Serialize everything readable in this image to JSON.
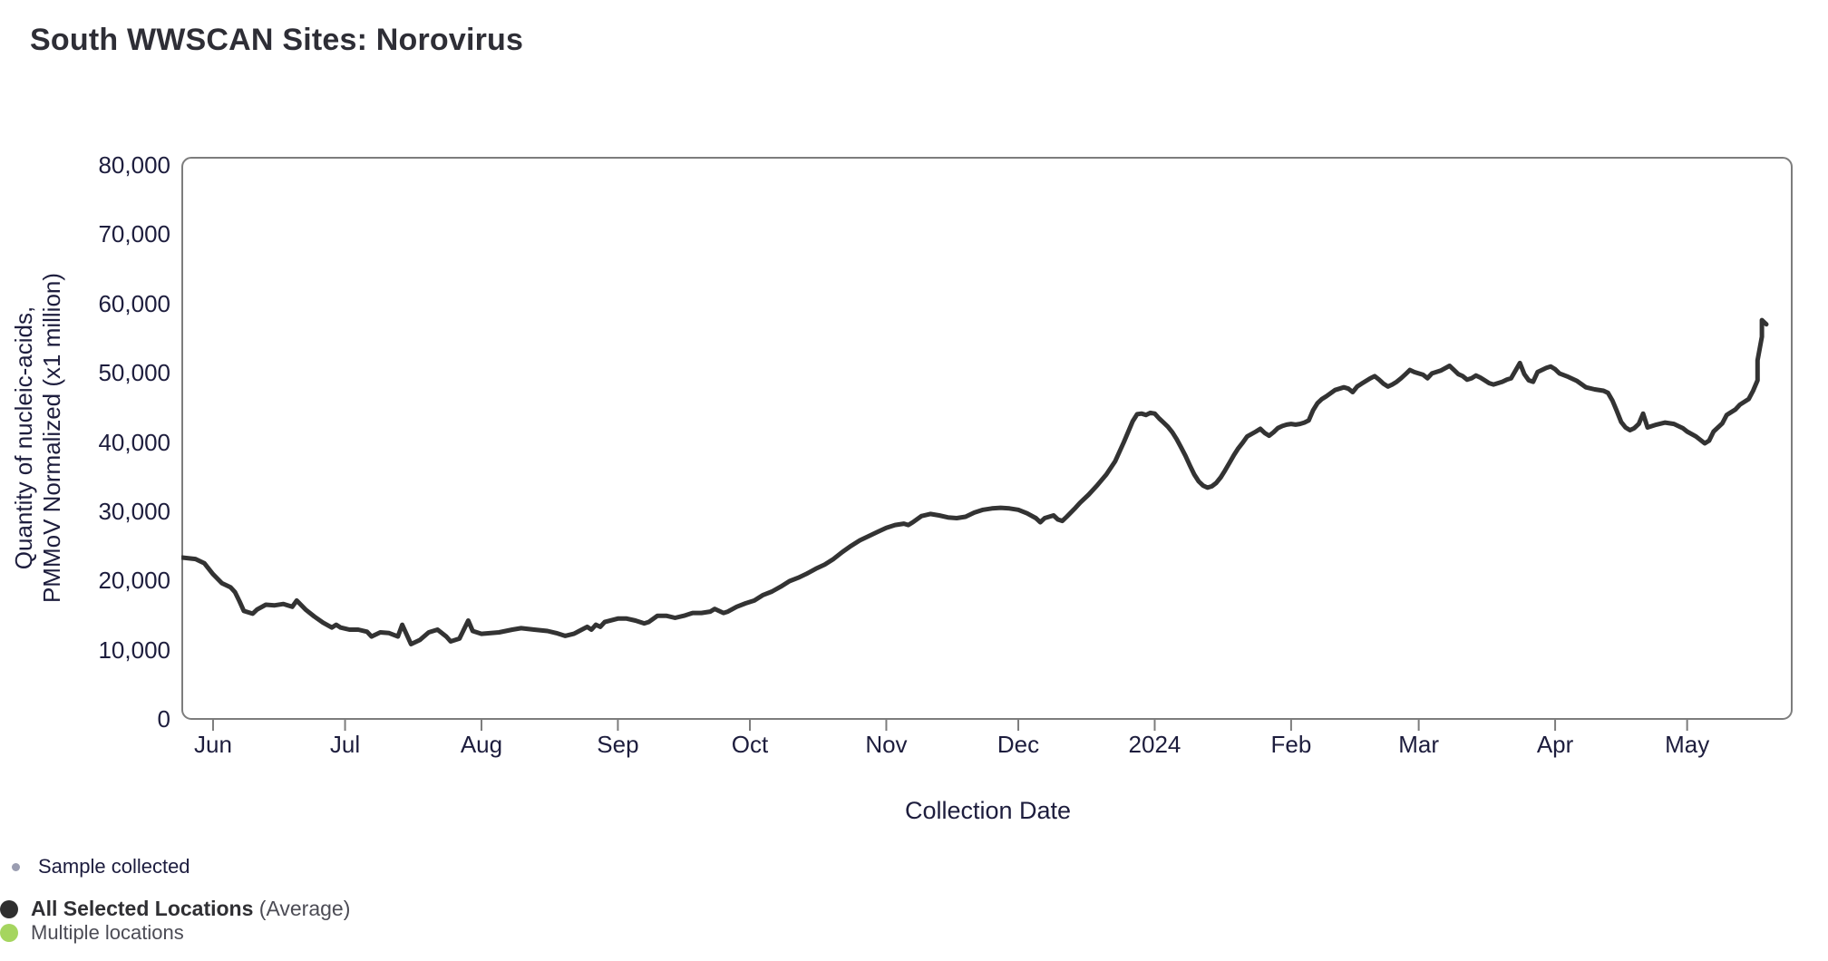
{
  "header": {
    "title": "South WWSCAN Sites: Norovirus"
  },
  "legend": {
    "sample_collected": {
      "label": "Sample collected",
      "dot_color": "#9a9db1"
    },
    "all_selected": {
      "label_bold": "All Selected Locations",
      "label_suffix": " (Average)",
      "dot_color": "#2f2f2f"
    },
    "multiple_locations": {
      "label": "Multiple locations",
      "dot_color": "#a5d55f"
    }
  },
  "chart_data": {
    "type": "line",
    "title": "South WWSCAN Sites: Norovirus",
    "xlabel": "Collection Date",
    "ylabel_lines": [
      "Quantity of nucleic-acids,",
      "PMMoV Normalized (x1 million)"
    ],
    "ylim": [
      0,
      80000
    ],
    "grid": false,
    "frame_color": "#7d7d7d",
    "x_domain": [
      "2023-05-25",
      "2024-05-19"
    ],
    "y_ticks": [
      {
        "value": 0,
        "label": "0"
      },
      {
        "value": 10000,
        "label": "10,000"
      },
      {
        "value": 20000,
        "label": "20,000"
      },
      {
        "value": 30000,
        "label": "30,000"
      },
      {
        "value": 40000,
        "label": "40,000"
      },
      {
        "value": 50000,
        "label": "50,000"
      },
      {
        "value": 60000,
        "label": "60,000"
      },
      {
        "value": 70000,
        "label": "70,000"
      },
      {
        "value": 80000,
        "label": "80,000"
      }
    ],
    "x_ticks": [
      {
        "date": "2023-06-01",
        "label": "Jun"
      },
      {
        "date": "2023-07-01",
        "label": "Jul"
      },
      {
        "date": "2023-08-01",
        "label": "Aug"
      },
      {
        "date": "2023-09-01",
        "label": "Sep"
      },
      {
        "date": "2023-10-01",
        "label": "Oct"
      },
      {
        "date": "2023-11-01",
        "label": "Nov"
      },
      {
        "date": "2023-12-01",
        "label": "Dec"
      },
      {
        "date": "2024-01-01",
        "label": "2024"
      },
      {
        "date": "2024-02-01",
        "label": "Feb"
      },
      {
        "date": "2024-03-01",
        "label": "Mar"
      },
      {
        "date": "2024-04-01",
        "label": "Apr"
      },
      {
        "date": "2024-05-01",
        "label": "May"
      }
    ],
    "series": [
      {
        "name": "All Selected Locations (Average)",
        "color": "#333333",
        "points": [
          [
            "2023-05-25",
            23300
          ],
          [
            "2023-05-28",
            23100
          ],
          [
            "2023-05-30",
            22500
          ],
          [
            "2023-06-01",
            20900
          ],
          [
            "2023-06-03",
            19600
          ],
          [
            "2023-06-05",
            19000
          ],
          [
            "2023-06-06",
            18300
          ],
          [
            "2023-06-07",
            17000
          ],
          [
            "2023-06-08",
            15600
          ],
          [
            "2023-06-10",
            15200
          ],
          [
            "2023-06-11",
            15800
          ],
          [
            "2023-06-13",
            16500
          ],
          [
            "2023-06-15",
            16400
          ],
          [
            "2023-06-17",
            16600
          ],
          [
            "2023-06-19",
            16200
          ],
          [
            "2023-06-20",
            17100
          ],
          [
            "2023-06-22",
            15800
          ],
          [
            "2023-06-24",
            14800
          ],
          [
            "2023-06-26",
            13900
          ],
          [
            "2023-06-28",
            13200
          ],
          [
            "2023-06-29",
            13600
          ],
          [
            "2023-06-30",
            13200
          ],
          [
            "2023-07-02",
            12900
          ],
          [
            "2023-07-04",
            12900
          ],
          [
            "2023-07-06",
            12600
          ],
          [
            "2023-07-07",
            11900
          ],
          [
            "2023-07-09",
            12500
          ],
          [
            "2023-07-11",
            12400
          ],
          [
            "2023-07-13",
            11900
          ],
          [
            "2023-07-14",
            13600
          ],
          [
            "2023-07-16",
            10800
          ],
          [
            "2023-07-18",
            11400
          ],
          [
            "2023-07-20",
            12500
          ],
          [
            "2023-07-22",
            12900
          ],
          [
            "2023-07-24",
            11900
          ],
          [
            "2023-07-25",
            11200
          ],
          [
            "2023-07-27",
            11600
          ],
          [
            "2023-07-29",
            14200
          ],
          [
            "2023-07-30",
            12700
          ],
          [
            "2023-08-01",
            12300
          ],
          [
            "2023-08-05",
            12500
          ],
          [
            "2023-08-08",
            12900
          ],
          [
            "2023-08-10",
            13100
          ],
          [
            "2023-08-13",
            12900
          ],
          [
            "2023-08-16",
            12700
          ],
          [
            "2023-08-18",
            12400
          ],
          [
            "2023-08-20",
            12000
          ],
          [
            "2023-08-22",
            12300
          ],
          [
            "2023-08-25",
            13300
          ],
          [
            "2023-08-26",
            12900
          ],
          [
            "2023-08-27",
            13600
          ],
          [
            "2023-08-28",
            13300
          ],
          [
            "2023-08-29",
            14000
          ],
          [
            "2023-09-01",
            14500
          ],
          [
            "2023-09-03",
            14500
          ],
          [
            "2023-09-05",
            14200
          ],
          [
            "2023-09-07",
            13800
          ],
          [
            "2023-09-08",
            14000
          ],
          [
            "2023-09-10",
            14900
          ],
          [
            "2023-09-12",
            14900
          ],
          [
            "2023-09-14",
            14600
          ],
          [
            "2023-09-16",
            14900
          ],
          [
            "2023-09-18",
            15300
          ],
          [
            "2023-09-20",
            15300
          ],
          [
            "2023-09-22",
            15500
          ],
          [
            "2023-09-23",
            15900
          ],
          [
            "2023-09-25",
            15300
          ],
          [
            "2023-09-26",
            15500
          ],
          [
            "2023-09-28",
            16200
          ],
          [
            "2023-09-30",
            16700
          ],
          [
            "2023-10-02",
            17100
          ],
          [
            "2023-10-04",
            17900
          ],
          [
            "2023-10-06",
            18400
          ],
          [
            "2023-10-08",
            19100
          ],
          [
            "2023-10-10",
            19900
          ],
          [
            "2023-10-12",
            20400
          ],
          [
            "2023-10-14",
            21000
          ],
          [
            "2023-10-16",
            21700
          ],
          [
            "2023-10-18",
            22300
          ],
          [
            "2023-10-20",
            23100
          ],
          [
            "2023-10-22",
            24100
          ],
          [
            "2023-10-24",
            25000
          ],
          [
            "2023-10-26",
            25800
          ],
          [
            "2023-10-28",
            26400
          ],
          [
            "2023-10-30",
            27000
          ],
          [
            "2023-11-01",
            27600
          ],
          [
            "2023-11-03",
            28000
          ],
          [
            "2023-11-05",
            28200
          ],
          [
            "2023-11-06",
            28000
          ],
          [
            "2023-11-07",
            28400
          ],
          [
            "2023-11-09",
            29300
          ],
          [
            "2023-11-11",
            29600
          ],
          [
            "2023-11-13",
            29400
          ],
          [
            "2023-11-15",
            29100
          ],
          [
            "2023-11-17",
            29000
          ],
          [
            "2023-11-19",
            29200
          ],
          [
            "2023-11-21",
            29800
          ],
          [
            "2023-11-23",
            30200
          ],
          [
            "2023-11-25",
            30400
          ],
          [
            "2023-11-27",
            30500
          ],
          [
            "2023-11-29",
            30400
          ],
          [
            "2023-12-01",
            30200
          ],
          [
            "2023-12-03",
            29700
          ],
          [
            "2023-12-05",
            29000
          ],
          [
            "2023-12-06",
            28400
          ],
          [
            "2023-12-07",
            29000
          ],
          [
            "2023-12-09",
            29400
          ],
          [
            "2023-12-10",
            28800
          ],
          [
            "2023-12-11",
            28600
          ],
          [
            "2023-12-12",
            29200
          ],
          [
            "2023-12-14",
            30500
          ],
          [
            "2023-12-15",
            31200
          ],
          [
            "2023-12-17",
            32400
          ],
          [
            "2023-12-19",
            33800
          ],
          [
            "2023-12-21",
            35300
          ],
          [
            "2023-12-23",
            37200
          ],
          [
            "2023-12-25",
            40000
          ],
          [
            "2023-12-27",
            43000
          ],
          [
            "2023-12-28",
            44000
          ],
          [
            "2023-12-29",
            44100
          ],
          [
            "2023-12-30",
            43900
          ],
          [
            "2023-12-31",
            44200
          ],
          [
            "2024-01-01",
            44100
          ],
          [
            "2024-01-02",
            43400
          ],
          [
            "2024-01-03",
            42800
          ],
          [
            "2024-01-04",
            42200
          ],
          [
            "2024-01-05",
            41400
          ],
          [
            "2024-01-06",
            40400
          ],
          [
            "2024-01-07",
            39200
          ],
          [
            "2024-01-08",
            38000
          ],
          [
            "2024-01-09",
            36600
          ],
          [
            "2024-01-10",
            35300
          ],
          [
            "2024-01-11",
            34300
          ],
          [
            "2024-01-12",
            33700
          ],
          [
            "2024-01-13",
            33400
          ],
          [
            "2024-01-14",
            33600
          ],
          [
            "2024-01-15",
            34100
          ],
          [
            "2024-01-16",
            34900
          ],
          [
            "2024-01-17",
            35900
          ],
          [
            "2024-01-18",
            37000
          ],
          [
            "2024-01-19",
            38100
          ],
          [
            "2024-01-20",
            39100
          ],
          [
            "2024-01-21",
            39900
          ],
          [
            "2024-01-22",
            40800
          ],
          [
            "2024-01-24",
            41500
          ],
          [
            "2024-01-25",
            41900
          ],
          [
            "2024-01-26",
            41300
          ],
          [
            "2024-01-27",
            40900
          ],
          [
            "2024-01-28",
            41400
          ],
          [
            "2024-01-29",
            42000
          ],
          [
            "2024-01-30",
            42300
          ],
          [
            "2024-01-31",
            42500
          ],
          [
            "2024-02-01",
            42600
          ],
          [
            "2024-02-02",
            42500
          ],
          [
            "2024-02-03",
            42600
          ],
          [
            "2024-02-04",
            42800
          ],
          [
            "2024-02-05",
            43100
          ],
          [
            "2024-02-06",
            44600
          ],
          [
            "2024-02-07",
            45600
          ],
          [
            "2024-02-08",
            46200
          ],
          [
            "2024-02-09",
            46600
          ],
          [
            "2024-02-11",
            47500
          ],
          [
            "2024-02-13",
            47900
          ],
          [
            "2024-02-14",
            47700
          ],
          [
            "2024-02-15",
            47200
          ],
          [
            "2024-02-16",
            48000
          ],
          [
            "2024-02-17",
            48400
          ],
          [
            "2024-02-18",
            48800
          ],
          [
            "2024-02-19",
            49200
          ],
          [
            "2024-02-20",
            49500
          ],
          [
            "2024-02-21",
            49000
          ],
          [
            "2024-02-22",
            48400
          ],
          [
            "2024-02-23",
            48000
          ],
          [
            "2024-02-24",
            48300
          ],
          [
            "2024-02-25",
            48700
          ],
          [
            "2024-02-26",
            49200
          ],
          [
            "2024-02-27",
            49800
          ],
          [
            "2024-02-28",
            50400
          ],
          [
            "2024-02-29",
            50100
          ],
          [
            "2024-03-01",
            49900
          ],
          [
            "2024-03-02",
            49700
          ],
          [
            "2024-03-03",
            49200
          ],
          [
            "2024-03-04",
            49900
          ],
          [
            "2024-03-06",
            50300
          ],
          [
            "2024-03-08",
            51000
          ],
          [
            "2024-03-09",
            50400
          ],
          [
            "2024-03-10",
            49800
          ],
          [
            "2024-03-11",
            49500
          ],
          [
            "2024-03-12",
            49000
          ],
          [
            "2024-03-13",
            49200
          ],
          [
            "2024-03-14",
            49600
          ],
          [
            "2024-03-15",
            49300
          ],
          [
            "2024-03-16",
            48900
          ],
          [
            "2024-03-17",
            48500
          ],
          [
            "2024-03-18",
            48300
          ],
          [
            "2024-03-19",
            48500
          ],
          [
            "2024-03-20",
            48700
          ],
          [
            "2024-03-21",
            49000
          ],
          [
            "2024-03-22",
            49200
          ],
          [
            "2024-03-24",
            51400
          ],
          [
            "2024-03-25",
            49800
          ],
          [
            "2024-03-26",
            48900
          ],
          [
            "2024-03-27",
            48700
          ],
          [
            "2024-03-28",
            50100
          ],
          [
            "2024-03-30",
            50700
          ],
          [
            "2024-03-31",
            50900
          ],
          [
            "2024-04-01",
            50500
          ],
          [
            "2024-04-02",
            49900
          ],
          [
            "2024-04-04",
            49400
          ],
          [
            "2024-04-06",
            48800
          ],
          [
            "2024-04-08",
            47900
          ],
          [
            "2024-04-10",
            47600
          ],
          [
            "2024-04-12",
            47400
          ],
          [
            "2024-04-13",
            47100
          ],
          [
            "2024-04-14",
            46000
          ],
          [
            "2024-04-15",
            44500
          ],
          [
            "2024-04-16",
            42900
          ],
          [
            "2024-04-17",
            42100
          ],
          [
            "2024-04-18",
            41700
          ],
          [
            "2024-04-19",
            42000
          ],
          [
            "2024-04-20",
            42600
          ],
          [
            "2024-04-21",
            44100
          ],
          [
            "2024-04-22",
            42100
          ],
          [
            "2024-04-24",
            42500
          ],
          [
            "2024-04-26",
            42800
          ],
          [
            "2024-04-28",
            42600
          ],
          [
            "2024-04-30",
            42000
          ],
          [
            "2024-05-01",
            41500
          ],
          [
            "2024-05-03",
            40800
          ],
          [
            "2024-05-04",
            40300
          ],
          [
            "2024-05-05",
            39800
          ],
          [
            "2024-05-06",
            40200
          ],
          [
            "2024-05-07",
            41500
          ],
          [
            "2024-05-09",
            42700
          ],
          [
            "2024-05-10",
            43900
          ],
          [
            "2024-05-12",
            44700
          ],
          [
            "2024-05-13",
            45400
          ],
          [
            "2024-05-15",
            46200
          ],
          [
            "2024-05-16",
            47400
          ],
          [
            "2024-05-17",
            48900
          ],
          [
            "2024-05-17",
            51800
          ],
          [
            "2024-05-18",
            55200
          ],
          [
            "2024-05-18",
            57600
          ],
          [
            "2024-05-19",
            57000
          ]
        ]
      }
    ]
  }
}
